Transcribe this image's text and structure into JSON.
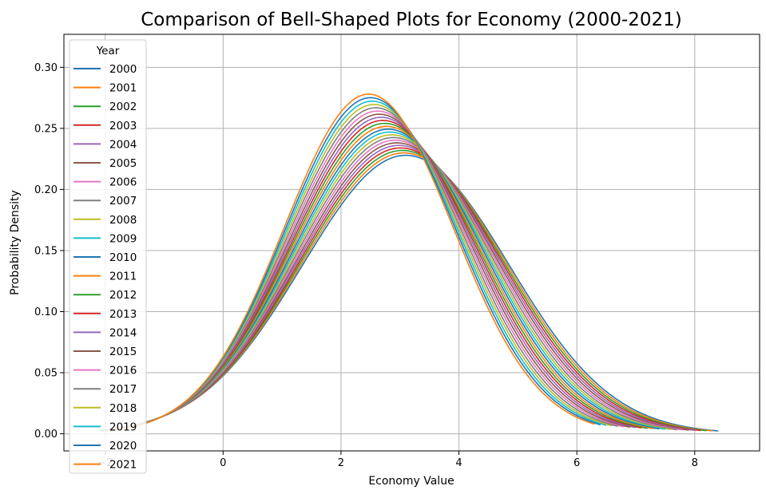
{
  "chart_data": {
    "type": "line",
    "title": "Comparison of Bell-Shaped Plots for Economy (2000-2021)",
    "xlabel": "Economy Value",
    "ylabel": "Probability Density",
    "xlim": [
      -2.7,
      9.1
    ],
    "ylim": [
      -0.014,
      0.327
    ],
    "xticks": [
      -2,
      0,
      2,
      4,
      6,
      8
    ],
    "yticks": [
      0.0,
      0.05,
      0.1,
      0.15,
      0.2,
      0.25,
      0.3
    ],
    "ytick_labels": [
      "0.00",
      "0.05",
      "0.10",
      "0.15",
      "0.20",
      "0.25",
      "0.30"
    ],
    "xtick_labels": [
      "−2",
      "0",
      "2",
      "4",
      "6",
      "8"
    ],
    "grid": true,
    "legend": {
      "title": "Year",
      "placement": "upper-left"
    },
    "curve_form": "normal",
    "series": [
      {
        "name": "2000",
        "color": "#1f77b4",
        "mean": 3.1,
        "sd": 1.75,
        "x_range": [
          -2.1,
          8.4
        ]
      },
      {
        "name": "2001",
        "color": "#ff7f0e",
        "mean": 3.07,
        "sd": 1.735,
        "x_range": [
          -2.1,
          8.3
        ]
      },
      {
        "name": "2002",
        "color": "#2ca02c",
        "mean": 3.04,
        "sd": 1.72,
        "x_range": [
          -2.1,
          8.2
        ]
      },
      {
        "name": "2003",
        "color": "#d62728",
        "mean": 3.01,
        "sd": 1.705,
        "x_range": [
          -2.0,
          8.1
        ]
      },
      {
        "name": "2004",
        "color": "#9467bd",
        "mean": 2.98,
        "sd": 1.69,
        "x_range": [
          -2.0,
          8.0
        ]
      },
      {
        "name": "2005",
        "color": "#8c564b",
        "mean": 2.95,
        "sd": 1.675,
        "x_range": [
          -2.0,
          7.9
        ]
      },
      {
        "name": "2006",
        "color": "#e377c2",
        "mean": 2.92,
        "sd": 1.66,
        "x_range": [
          -2.0,
          7.8
        ]
      },
      {
        "name": "2007",
        "color": "#7f7f7f",
        "mean": 2.89,
        "sd": 1.645,
        "x_range": [
          -2.0,
          7.7
        ]
      },
      {
        "name": "2008",
        "color": "#bcbd22",
        "mean": 2.86,
        "sd": 1.63,
        "x_range": [
          -2.0,
          7.6
        ]
      },
      {
        "name": "2009",
        "color": "#17becf",
        "mean": 2.83,
        "sd": 1.615,
        "x_range": [
          -2.0,
          7.5
        ]
      },
      {
        "name": "2010",
        "color": "#1f77b4",
        "mean": 2.8,
        "sd": 1.6,
        "x_range": [
          -2.0,
          7.4
        ]
      },
      {
        "name": "2011",
        "color": "#ff7f0e",
        "mean": 2.77,
        "sd": 1.585,
        "x_range": [
          -2.0,
          7.3
        ]
      },
      {
        "name": "2012",
        "color": "#2ca02c",
        "mean": 2.74,
        "sd": 1.57,
        "x_range": [
          -2.0,
          7.2
        ]
      },
      {
        "name": "2013",
        "color": "#d62728",
        "mean": 2.71,
        "sd": 1.555,
        "x_range": [
          -2.0,
          7.1
        ]
      },
      {
        "name": "2014",
        "color": "#9467bd",
        "mean": 2.68,
        "sd": 1.54,
        "x_range": [
          -2.0,
          7.0
        ]
      },
      {
        "name": "2015",
        "color": "#8c564b",
        "mean": 2.65,
        "sd": 1.525,
        "x_range": [
          -2.0,
          6.9
        ]
      },
      {
        "name": "2016",
        "color": "#e377c2",
        "mean": 2.62,
        "sd": 1.51,
        "x_range": [
          -2.0,
          6.8
        ]
      },
      {
        "name": "2017",
        "color": "#7f7f7f",
        "mean": 2.59,
        "sd": 1.495,
        "x_range": [
          -2.0,
          6.7
        ]
      },
      {
        "name": "2018",
        "color": "#bcbd22",
        "mean": 2.56,
        "sd": 1.48,
        "x_range": [
          -2.0,
          6.6
        ]
      },
      {
        "name": "2019",
        "color": "#17becf",
        "mean": 2.53,
        "sd": 1.465,
        "x_range": [
          -2.0,
          6.5
        ]
      },
      {
        "name": "2020",
        "color": "#1f77b4",
        "mean": 2.5,
        "sd": 1.45,
        "x_range": [
          -2.0,
          6.4
        ]
      },
      {
        "name": "2021",
        "color": "#ff7f0e",
        "mean": 2.47,
        "sd": 1.435,
        "x_range": [
          -2.0,
          6.3
        ]
      }
    ]
  }
}
